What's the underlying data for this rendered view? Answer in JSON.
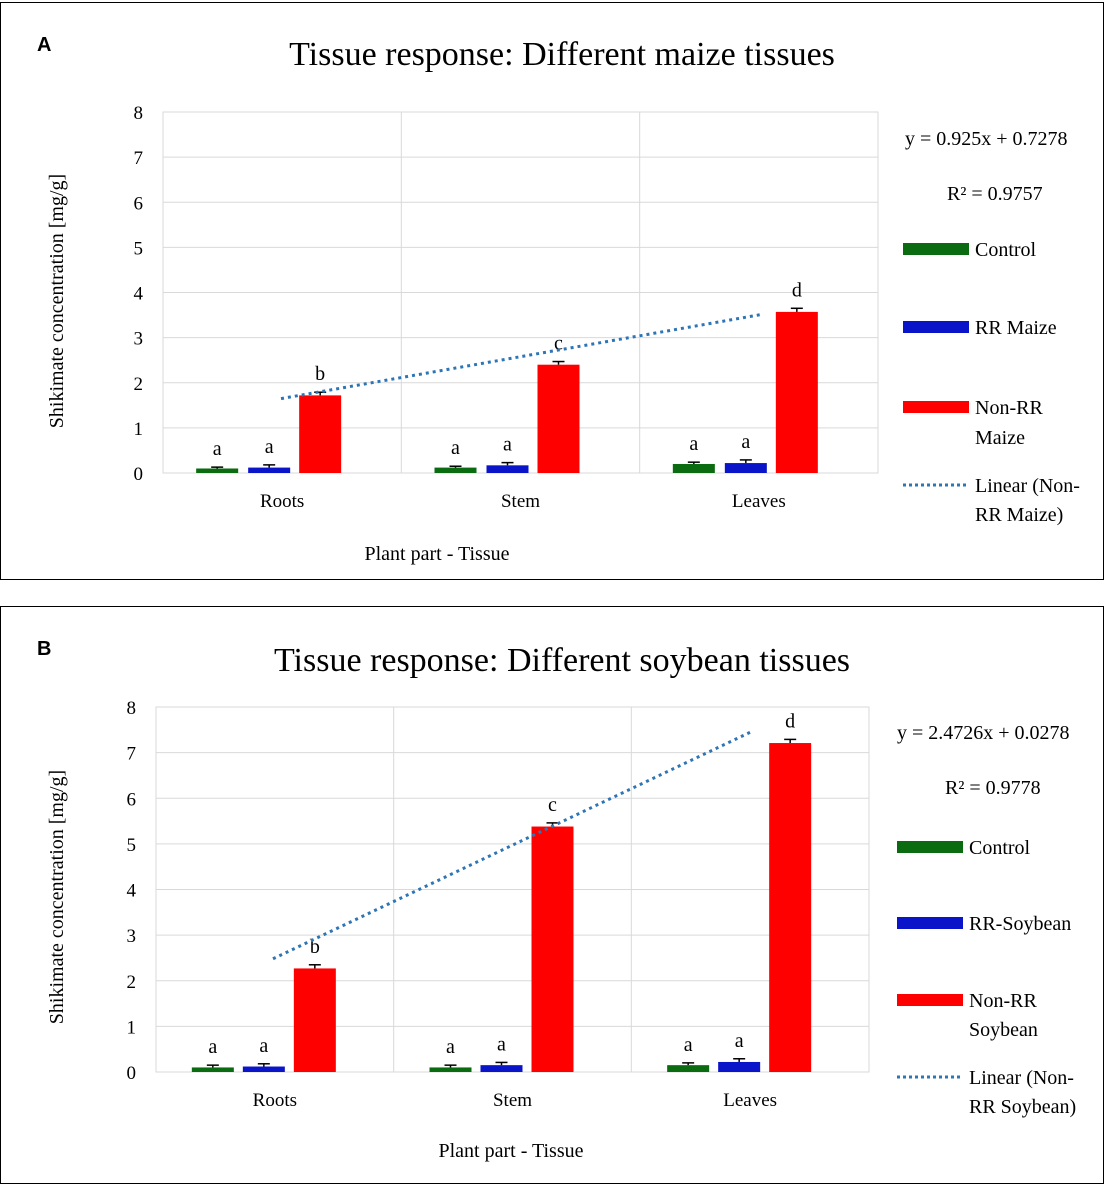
{
  "charts": [
    {
      "panel_label": "A",
      "ylabel": "Shikimate concentration [mg/g]",
      "xlabel": "Plant part - Tissue",
      "equation": "y = 0.925x + 0.7278",
      "r2": "R² = 0.9757",
      "legend": {
        "control": "Control",
        "rr": "RR Maize",
        "nonrr_line1": "Non-RR",
        "nonrr_line2": "Maize",
        "linear_line1": "Linear (Non-",
        "linear_line2": "RR Maize)"
      }
    },
    {
      "panel_label": "B",
      "ylabel": "Shikimate concentration [mg/g]",
      "xlabel": "Plant part - Tissue",
      "equation": "y = 2.4726x + 0.0278",
      "r2": "R² = 0.9778",
      "legend": {
        "control": "Control",
        "rr": "RR-Soybean",
        "nonrr_line1": "Non-RR",
        "nonrr_line2": "Soybean",
        "linear_line1": "Linear (Non-",
        "linear_line2": "RR Soybean)"
      }
    }
  ],
  "colors": {
    "control": "#0b6b10",
    "rr": "#0a14c8",
    "nonrr": "#ff0000",
    "trend": "#2e75b6",
    "grid": "#d9d9d9"
  },
  "chart_data": [
    {
      "type": "bar",
      "title": "Tissue response: Different maize tissues",
      "categories": [
        "Roots",
        "Stem",
        "Leaves"
      ],
      "ylim": [
        0,
        8
      ],
      "yticks": [
        0,
        1,
        2,
        3,
        4,
        5,
        6,
        7,
        8
      ],
      "grid": true,
      "legend_position": "right",
      "series": [
        {
          "name": "Control",
          "color": "#0b6b10",
          "values": [
            0.1,
            0.12,
            0.2
          ],
          "errors": [
            0.03,
            0.03,
            0.04
          ],
          "labels": [
            "a",
            "a",
            "a"
          ]
        },
        {
          "name": "RR Maize",
          "color": "#0a14c8",
          "values": [
            0.12,
            0.17,
            0.22
          ],
          "errors": [
            0.06,
            0.06,
            0.07
          ],
          "labels": [
            "a",
            "a",
            "a"
          ]
        },
        {
          "name": "Non-RR Maize",
          "color": "#ff0000",
          "values": [
            1.72,
            2.4,
            3.57
          ],
          "errors": [
            0.07,
            0.07,
            0.08
          ],
          "labels": [
            "b",
            "c",
            "d"
          ]
        }
      ],
      "trendline": {
        "name": "Linear (Non-RR Maize)",
        "slope": 0.925,
        "intercept": 0.7278
      }
    },
    {
      "type": "bar",
      "title": "Tissue response: Different soybean tissues",
      "categories": [
        "Roots",
        "Stem",
        "Leaves"
      ],
      "ylim": [
        0,
        8
      ],
      "yticks": [
        0,
        1,
        2,
        3,
        4,
        5,
        6,
        7,
        8
      ],
      "grid": true,
      "legend_position": "right",
      "series": [
        {
          "name": "Control",
          "color": "#0b6b10",
          "values": [
            0.1,
            0.1,
            0.15
          ],
          "errors": [
            0.05,
            0.05,
            0.05
          ],
          "labels": [
            "a",
            "a",
            "a"
          ]
        },
        {
          "name": "RR-Soybean",
          "color": "#0a14c8",
          "values": [
            0.12,
            0.15,
            0.22
          ],
          "errors": [
            0.06,
            0.06,
            0.07
          ],
          "labels": [
            "a",
            "a",
            "a"
          ]
        },
        {
          "name": "Non-RR Soybean",
          "color": "#ff0000",
          "values": [
            2.27,
            5.38,
            7.21
          ],
          "errors": [
            0.08,
            0.08,
            0.08
          ],
          "labels": [
            "b",
            "c",
            "d"
          ]
        }
      ],
      "trendline": {
        "name": "Linear (Non-RR Soybean)",
        "slope": 2.4726,
        "intercept": 0.0278
      }
    }
  ]
}
